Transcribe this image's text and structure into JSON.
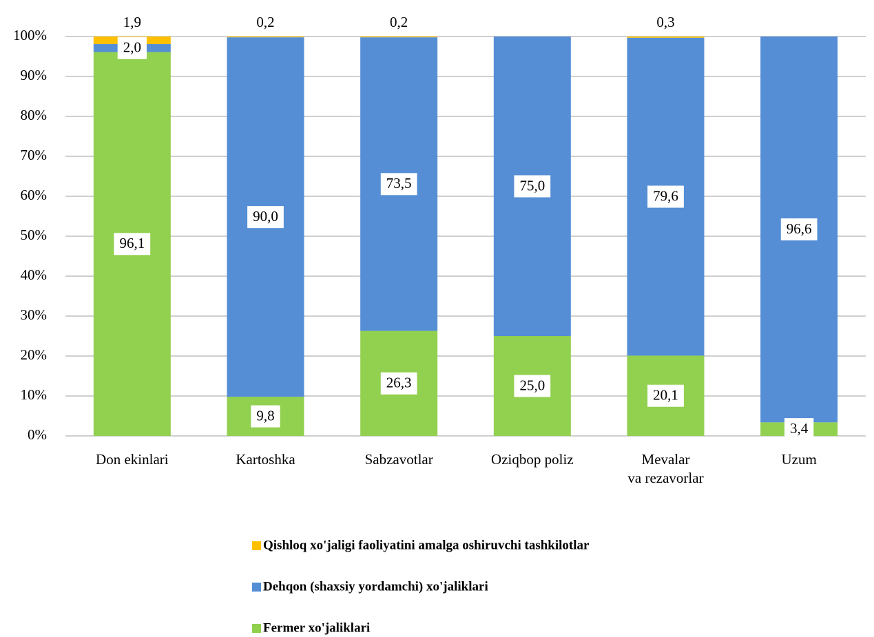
{
  "chart_data": {
    "type": "stacked_bar_100",
    "categories": [
      "Don ekinlari",
      "Kartoshka",
      "Sabzavotlar",
      "Oziqbop poliz",
      "Mevalar\nva rezavorlar",
      "Uzum"
    ],
    "series": [
      {
        "name": "Qishloq xo'jaligi faoliyatini amalga oshiruvchi tashkilotlar",
        "color": "#ffc000",
        "values": [
          1.9,
          0.2,
          0.2,
          null,
          0.3,
          null
        ],
        "value_labels": [
          "1,9",
          "0,2",
          "0,2",
          null,
          "0,3",
          null
        ]
      },
      {
        "name": "Dehqon (shaxsiy yordamchi) xo'jaliklari",
        "color": "#558ed5",
        "values": [
          2.0,
          90.0,
          73.5,
          75.0,
          79.6,
          96.6
        ],
        "value_labels": [
          "2,0",
          "90,0",
          "73,5",
          "75,0",
          "79,6",
          "96,6"
        ]
      },
      {
        "name": "Fermer xo'jaliklari",
        "color": "#92d050",
        "values": [
          96.1,
          9.8,
          26.3,
          25.0,
          20.1,
          3.4
        ],
        "value_labels": [
          "96,1",
          "9,8",
          "26,3",
          "25,0",
          "20,1",
          "3,4"
        ]
      }
    ],
    "ylim": [
      0,
      100
    ],
    "yticks": [
      {
        "value": 0,
        "label": "0%"
      },
      {
        "value": 10,
        "label": "10%"
      },
      {
        "value": 20,
        "label": "20%"
      },
      {
        "value": 30,
        "label": "30%"
      },
      {
        "value": 40,
        "label": "40%"
      },
      {
        "value": 50,
        "label": "50%"
      },
      {
        "value": 60,
        "label": "60%"
      },
      {
        "value": 70,
        "label": "70%"
      },
      {
        "value": 80,
        "label": "80%"
      },
      {
        "value": 90,
        "label": "90%"
      },
      {
        "value": 100,
        "label": "100%"
      }
    ],
    "grid": true
  }
}
